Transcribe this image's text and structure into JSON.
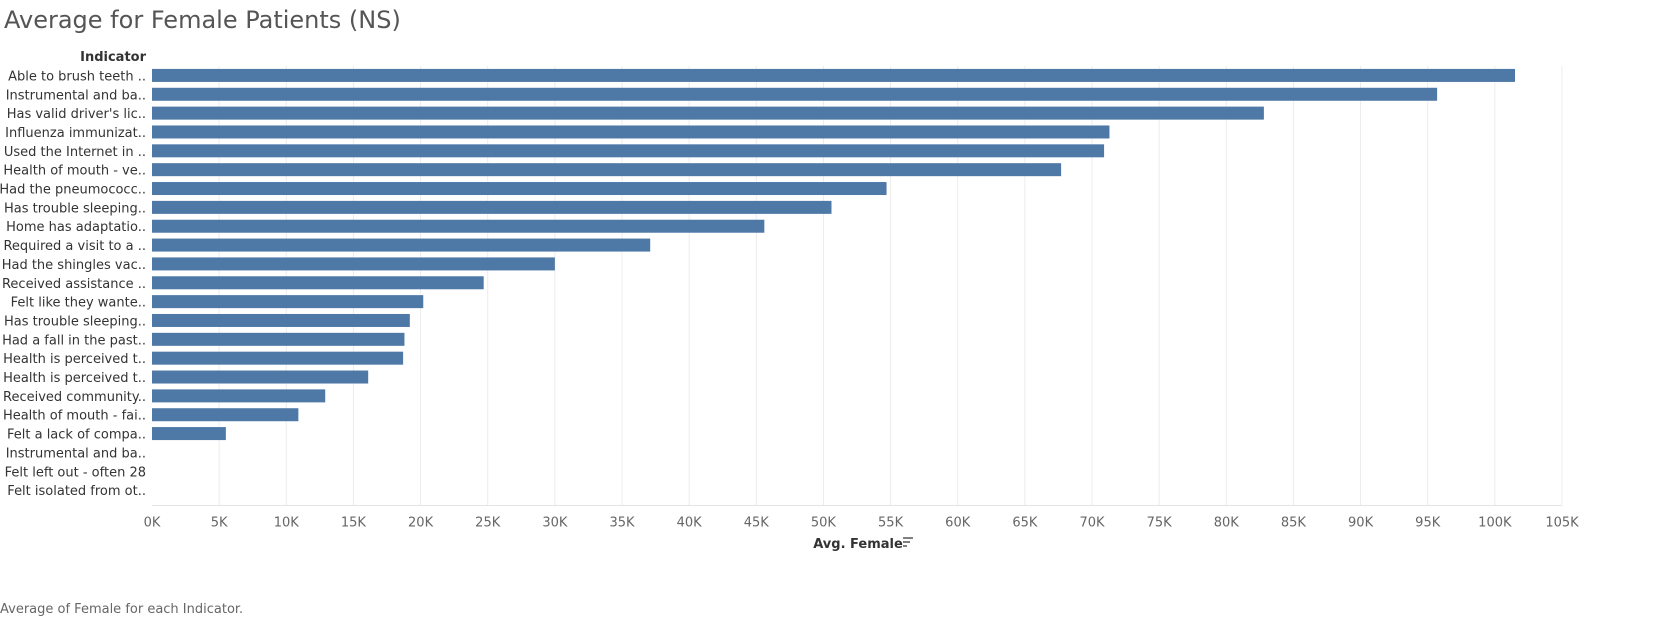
{
  "title": "Average for Female Patients (NS)",
  "caption": "Average of Female for each Indicator.",
  "colors": {
    "bar": "#4e79a7",
    "grid": "#ececec",
    "axis_text": "#666666",
    "label_text": "#333333"
  },
  "chart_data": {
    "type": "bar",
    "orientation": "horizontal",
    "ylabel": "Indicator",
    "xlabel": "Avg. Female",
    "xlabel_icon": "sort-descending-icon",
    "xlim": [
      0,
      105000
    ],
    "x_ticks": [
      0,
      5000,
      10000,
      15000,
      20000,
      25000,
      30000,
      35000,
      40000,
      45000,
      50000,
      55000,
      60000,
      65000,
      70000,
      75000,
      80000,
      85000,
      90000,
      95000,
      100000,
      105000
    ],
    "x_tick_labels": [
      "0K",
      "5K",
      "10K",
      "15K",
      "20K",
      "25K",
      "30K",
      "35K",
      "40K",
      "45K",
      "50K",
      "55K",
      "60K",
      "65K",
      "70K",
      "75K",
      "80K",
      "85K",
      "90K",
      "95K",
      "100K",
      "105K"
    ],
    "grid": true,
    "categories": [
      "Able to brush teeth ..",
      "Instrumental and ba..",
      "Has valid driver's lic..",
      "Influenza immunizat..",
      "Used the Internet in ..",
      "Health of mouth - ve..",
      "Had the pneumococc..",
      "Has trouble sleeping..",
      "Home has adaptatio..",
      "Required a visit to a ..",
      "Had the shingles vac..",
      "Received assistance ..",
      "Felt like they wante..",
      "Has trouble sleeping..",
      "Had a fall in the past..",
      "Health is perceived t..",
      "Health is perceived t..",
      "Received community..",
      "Health of mouth - fai..",
      "Felt a lack of compa..",
      "Instrumental and ba..",
      "Felt left out - often 28",
      "Felt isolated from ot.."
    ],
    "values": [
      101500,
      95700,
      82800,
      71300,
      70900,
      67700,
      54700,
      50600,
      45600,
      37100,
      30000,
      24700,
      20200,
      19200,
      18800,
      18700,
      16100,
      12900,
      10900,
      5500,
      0,
      0,
      0
    ]
  }
}
